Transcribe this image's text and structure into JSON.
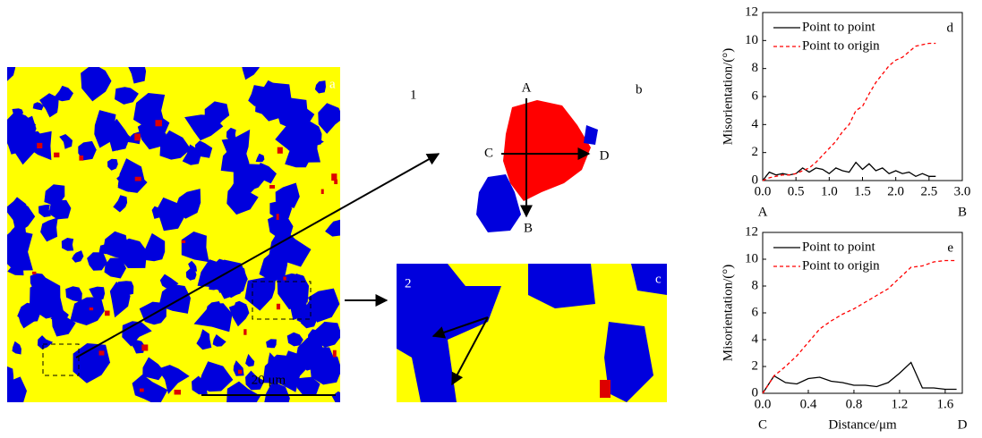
{
  "labels": {
    "map_a": "a",
    "map_b_number": "1",
    "map_b": "b",
    "point_a": "A",
    "point_b": "B",
    "point_c": "C",
    "point_d": "D",
    "map_c": "c",
    "map_c_number": "2",
    "scale_bar": "20 μm"
  },
  "chart_data": [
    {
      "type": "line",
      "panel": "d",
      "y_label": "Misorientation/(°)",
      "endpoint_labels": [
        "A",
        "B"
      ],
      "x": [
        0,
        0.1,
        0.2,
        0.3,
        0.4,
        0.5,
        0.6,
        0.7,
        0.8,
        0.9,
        1.0,
        1.1,
        1.2,
        1.3,
        1.4,
        1.5,
        1.6,
        1.7,
        1.8,
        1.9,
        2.0,
        2.1,
        2.2,
        2.3,
        2.4,
        2.5,
        2.6
      ],
      "series": [
        {
          "name": "Point to point",
          "color": "#000000",
          "dashed": false,
          "values": [
            0,
            0.6,
            0.4,
            0.5,
            0.4,
            0.5,
            0.9,
            0.6,
            0.9,
            0.8,
            0.5,
            0.9,
            0.7,
            0.6,
            1.3,
            0.8,
            1.2,
            0.7,
            0.9,
            0.5,
            0.7,
            0.5,
            0.6,
            0.3,
            0.5,
            0.3,
            0.3
          ]
        },
        {
          "name": "Point to origin",
          "color": "#ff0000",
          "dashed": true,
          "values": [
            0,
            0.2,
            0.3,
            0.4,
            0.4,
            0.5,
            0.7,
            0.9,
            1.3,
            1.8,
            2.3,
            2.8,
            3.5,
            4.0,
            5.0,
            5.3,
            6.2,
            7.0,
            7.6,
            8.2,
            8.6,
            8.8,
            9.2,
            9.6,
            9.7,
            9.8,
            9.8
          ]
        }
      ],
      "xlim": [
        0,
        3.0
      ],
      "ylim": [
        0,
        12
      ],
      "xticks": [
        {
          "value": 0,
          "label": "0.0"
        },
        {
          "value": 0.5,
          "label": "0.5"
        },
        {
          "value": 1,
          "label": "1.0"
        },
        {
          "value": 1.5,
          "label": "1.5"
        },
        {
          "value": 2,
          "label": "2.0"
        },
        {
          "value": 2.5,
          "label": "2.5"
        },
        {
          "value": 3,
          "label": "3.0"
        }
      ],
      "yticks": [
        0,
        2,
        4,
        6,
        8,
        10,
        12
      ]
    },
    {
      "type": "line",
      "panel": "e",
      "y_label": "Misorientation/(°)",
      "x_label": "Distance/μm",
      "endpoint_labels": [
        "C",
        "D"
      ],
      "x": [
        0,
        0.1,
        0.2,
        0.3,
        0.4,
        0.5,
        0.6,
        0.7,
        0.8,
        0.9,
        1.0,
        1.1,
        1.2,
        1.3,
        1.4,
        1.5,
        1.6,
        1.7
      ],
      "series": [
        {
          "name": "Point to point",
          "color": "#000000",
          "dashed": false,
          "values": [
            0,
            1.3,
            0.8,
            0.7,
            1.1,
            1.2,
            0.9,
            0.8,
            0.6,
            0.6,
            0.5,
            0.8,
            1.5,
            2.3,
            0.4,
            0.4,
            0.3,
            0.3
          ]
        },
        {
          "name": "Point to origin",
          "color": "#ff0000",
          "dashed": true,
          "values": [
            0,
            1.3,
            2.0,
            2.8,
            3.8,
            4.8,
            5.4,
            5.9,
            6.3,
            6.8,
            7.3,
            7.8,
            8.6,
            9.4,
            9.5,
            9.8,
            9.9,
            9.9
          ]
        }
      ],
      "xlim": [
        0,
        1.75
      ],
      "ylim": [
        0,
        12
      ],
      "xticks": [
        {
          "value": 0,
          "label": "0.0"
        },
        {
          "value": 0.4,
          "label": "0.4"
        },
        {
          "value": 0.8,
          "label": "0.8"
        },
        {
          "value": 1.2,
          "label": "1.2"
        },
        {
          "value": 1.6,
          "label": "1.6"
        }
      ],
      "yticks": [
        0,
        2,
        4,
        6,
        8,
        10,
        12
      ]
    }
  ]
}
